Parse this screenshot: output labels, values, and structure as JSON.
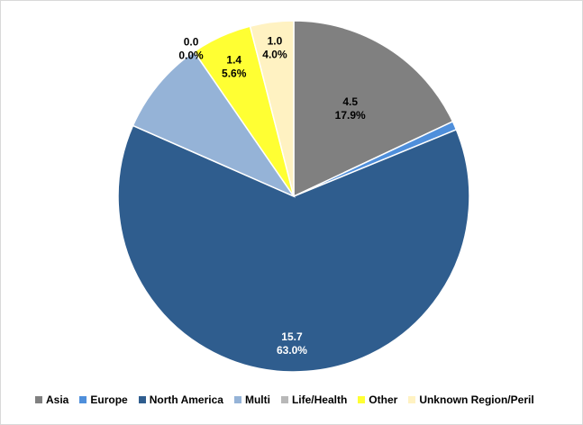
{
  "chart_data": {
    "type": "pie",
    "title": "",
    "legend_position": "bottom",
    "start_angle_deg": 0,
    "direction": "clockwise",
    "slices": [
      {
        "name": "Asia",
        "value": 4.5,
        "percent_label": "17.9%",
        "color": "#808080",
        "label_color": "#000000"
      },
      {
        "name": "Europe",
        "value": 0.2,
        "percent_label": "",
        "color": "#4f8fdb",
        "label_color": "#000000"
      },
      {
        "name": "North America",
        "value": 15.7,
        "percent_label": "63.0%",
        "color": "#2f5d8e",
        "label_color": "#ffffff"
      },
      {
        "name": "Multi",
        "value": 2.2,
        "percent_label": "",
        "color": "#95b3d7",
        "label_color": "#000000"
      },
      {
        "name": "Life/Health",
        "value": 0.0,
        "percent_label": "0.0%",
        "color": "#b8b8b8",
        "label_color": "#000000"
      },
      {
        "name": "Other",
        "value": 1.4,
        "percent_label": "5.6%",
        "color": "#ffff33",
        "label_color": "#000000"
      },
      {
        "name": "Unknown Region/Peril",
        "value": 1.0,
        "percent_label": "4.0%",
        "color": "#fff2c2",
        "label_color": "#000000"
      }
    ],
    "data_labels": [
      {
        "value": "4.5",
        "percent": "17.9%"
      },
      {
        "value": "15.7",
        "percent": "63.0%"
      },
      {
        "value": "0.0",
        "percent": "0.0%"
      },
      {
        "value": "1.4",
        "percent": "5.6%"
      },
      {
        "value": "1.0",
        "percent": "4.0%"
      }
    ]
  }
}
